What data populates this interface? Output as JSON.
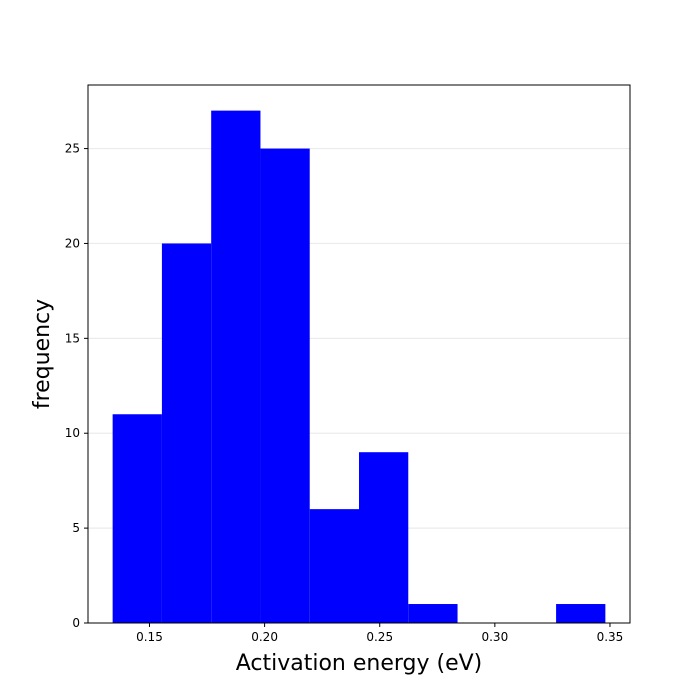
{
  "chart_data": {
    "type": "bar",
    "subtype": "histogram",
    "title": "",
    "xlabel": "Activation energy (eV)",
    "ylabel": "frequency",
    "bins": [
      {
        "start": 0.134,
        "end": 0.1554,
        "count": 11
      },
      {
        "start": 0.1554,
        "end": 0.1768,
        "count": 20
      },
      {
        "start": 0.1768,
        "end": 0.1982,
        "count": 27
      },
      {
        "start": 0.1982,
        "end": 0.2196,
        "count": 25
      },
      {
        "start": 0.2196,
        "end": 0.241,
        "count": 6
      },
      {
        "start": 0.241,
        "end": 0.2624,
        "count": 9
      },
      {
        "start": 0.2624,
        "end": 0.2838,
        "count": 1
      },
      {
        "start": 0.2838,
        "end": 0.3052,
        "count": 0
      },
      {
        "start": 0.3052,
        "end": 0.3266,
        "count": 0
      },
      {
        "start": 0.3266,
        "end": 0.348,
        "count": 1
      }
    ],
    "xlim": [
      0.1233,
      0.3587
    ],
    "ylim": [
      0,
      28.35
    ],
    "xticks": [
      0.15,
      0.2,
      0.25,
      0.3,
      0.35
    ],
    "xtick_labels": [
      "0.15",
      "0.20",
      "0.25",
      "0.30",
      "0.35"
    ],
    "yticks": [
      0,
      5,
      10,
      15,
      20,
      25
    ],
    "ytick_labels": [
      "0",
      "5",
      "10",
      "15",
      "20",
      "25"
    ],
    "bar_color": "#0000ff",
    "grid": "y",
    "grid_color": "#ebebeb",
    "legend": "none"
  }
}
